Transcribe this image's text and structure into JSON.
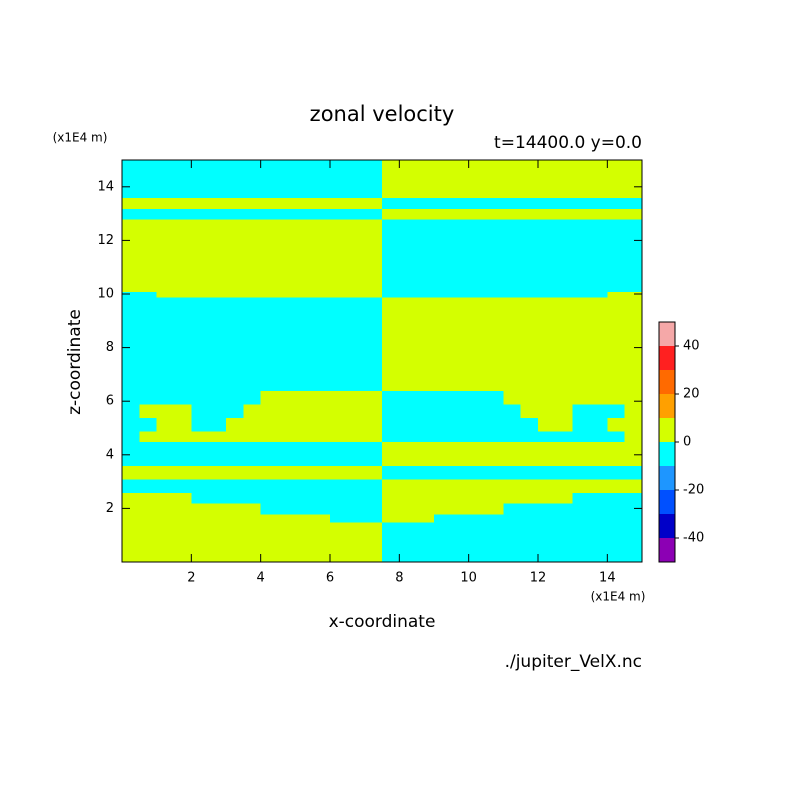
{
  "chart_data": {
    "type": "contour",
    "title": "zonal velocity",
    "subtitle": "t=14400.0 y=0.0",
    "xlabel": "x-coordinate",
    "ylabel": "z-coordinate",
    "xunits": "(x1E4 m)",
    "yunits": "(x1E4 m)",
    "source": "./jupiter_VelX.nc",
    "xlim": [
      0,
      15
    ],
    "ylim": [
      0,
      15
    ],
    "xticks": [
      2,
      4,
      6,
      8,
      10,
      12,
      14
    ],
    "yticks": [
      2,
      4,
      6,
      8,
      10,
      12,
      14
    ],
    "x_edges": [
      0,
      0.5,
      1,
      1.5,
      2,
      2.5,
      3,
      3.5,
      4,
      4.5,
      5,
      5.5,
      6,
      6.5,
      7,
      7.5,
      8,
      8.5,
      9,
      9.5,
      10,
      10.5,
      11,
      11.5,
      12,
      12.5,
      13,
      13.5,
      14,
      14.5,
      15
    ],
    "y_edges": [
      0,
      1.5,
      1.8,
      2.2,
      2.6,
      3.1,
      3.6,
      4.5,
      4.9,
      5.4,
      5.9,
      6.4,
      9.9,
      10.1,
      12.8,
      13.2,
      13.6,
      15
    ],
    "z": [
      [
        5,
        5,
        5,
        5,
        5,
        5,
        5,
        5,
        5,
        5,
        5,
        5,
        5,
        5,
        5,
        -5,
        -5,
        -5,
        -5,
        -5,
        -5,
        -5,
        -5,
        -5,
        -5,
        -5,
        -5,
        -5,
        -5,
        -5
      ],
      [
        5,
        5,
        5,
        5,
        5,
        5,
        5,
        5,
        5,
        5,
        5,
        5,
        -5,
        -5,
        -5,
        5,
        5,
        5,
        -5,
        -5,
        -5,
        -5,
        -5,
        -5,
        -5,
        -5,
        -5,
        -5,
        -5,
        -5
      ],
      [
        5,
        5,
        5,
        5,
        5,
        5,
        5,
        5,
        -5,
        -5,
        -5,
        -5,
        -5,
        -5,
        -5,
        5,
        5,
        5,
        5,
        5,
        5,
        5,
        -5,
        -5,
        -5,
        -5,
        -5,
        -5,
        -5,
        -5
      ],
      [
        5,
        5,
        5,
        5,
        -5,
        -5,
        -5,
        -5,
        -5,
        -5,
        -5,
        -5,
        -5,
        -5,
        -5,
        5,
        5,
        5,
        5,
        5,
        5,
        5,
        5,
        5,
        5,
        5,
        -5,
        -5,
        -5,
        -5
      ],
      [
        -5,
        -5,
        -5,
        -5,
        -5,
        -5,
        -5,
        -5,
        -5,
        -5,
        -5,
        -5,
        -5,
        -5,
        -5,
        5,
        5,
        5,
        5,
        5,
        5,
        5,
        5,
        5,
        5,
        5,
        5,
        5,
        5,
        5
      ],
      [
        5,
        5,
        5,
        5,
        5,
        5,
        5,
        5,
        5,
        5,
        5,
        5,
        5,
        5,
        5,
        -5,
        -5,
        -5,
        -5,
        -5,
        -5,
        -5,
        -5,
        -5,
        -5,
        -5,
        -5,
        -5,
        -5,
        -5
      ],
      [
        -5,
        -5,
        -5,
        -5,
        -5,
        -5,
        -5,
        -5,
        -5,
        -5,
        -5,
        -5,
        -5,
        -5,
        -5,
        5,
        5,
        5,
        5,
        5,
        5,
        5,
        5,
        5,
        5,
        5,
        5,
        5,
        5,
        5
      ],
      [
        -5,
        5,
        5,
        5,
        5,
        5,
        5,
        5,
        5,
        5,
        5,
        5,
        5,
        5,
        5,
        -5,
        -5,
        -5,
        -5,
        -5,
        -5,
        -5,
        -5,
        -5,
        -5,
        -5,
        -5,
        -5,
        -5,
        5
      ],
      [
        -5,
        -5,
        5,
        5,
        -5,
        -5,
        5,
        5,
        5,
        5,
        5,
        5,
        5,
        5,
        5,
        -5,
        -5,
        -5,
        -5,
        -5,
        -5,
        -5,
        -5,
        -5,
        5,
        5,
        -5,
        -5,
        5,
        5
      ],
      [
        -5,
        5,
        5,
        5,
        -5,
        -5,
        -5,
        5,
        5,
        5,
        5,
        5,
        5,
        5,
        5,
        -5,
        -5,
        -5,
        -5,
        -5,
        -5,
        -5,
        -5,
        5,
        5,
        5,
        -5,
        -5,
        -5,
        5
      ],
      [
        -5,
        -5,
        -5,
        -5,
        -5,
        -5,
        -5,
        -5,
        5,
        5,
        5,
        5,
        5,
        5,
        5,
        -5,
        -5,
        -5,
        -5,
        -5,
        -5,
        -5,
        5,
        5,
        5,
        5,
        5,
        5,
        5,
        5
      ],
      [
        -5,
        -5,
        -5,
        -5,
        -5,
        -5,
        -5,
        -5,
        -5,
        -5,
        -5,
        -5,
        -5,
        -5,
        -5,
        5,
        5,
        5,
        5,
        5,
        5,
        5,
        5,
        5,
        5,
        5,
        5,
        5,
        5,
        5
      ],
      [
        -5,
        -5,
        5,
        5,
        5,
        5,
        5,
        5,
        5,
        5,
        5,
        5,
        5,
        5,
        5,
        -5,
        -5,
        -5,
        -5,
        -5,
        -5,
        -5,
        -5,
        -5,
        -5,
        -5,
        -5,
        -5,
        5,
        5
      ],
      [
        5,
        5,
        5,
        5,
        5,
        5,
        5,
        5,
        5,
        5,
        5,
        5,
        5,
        5,
        5,
        -5,
        -5,
        -5,
        -5,
        -5,
        -5,
        -5,
        -5,
        -5,
        -5,
        -5,
        -5,
        -5,
        -5,
        -5
      ],
      [
        -5,
        -5,
        -5,
        -5,
        -5,
        -5,
        -5,
        -5,
        -5,
        -5,
        -5,
        -5,
        -5,
        -5,
        -5,
        5,
        5,
        5,
        5,
        5,
        5,
        5,
        5,
        5,
        5,
        5,
        5,
        5,
        5,
        5
      ],
      [
        5,
        5,
        5,
        5,
        5,
        5,
        5,
        5,
        5,
        5,
        5,
        5,
        5,
        5,
        5,
        -5,
        -5,
        -5,
        -5,
        -5,
        -5,
        -5,
        -5,
        -5,
        -5,
        -5,
        -5,
        -5,
        -5,
        -5
      ],
      [
        -5,
        -5,
        -5,
        -5,
        -5,
        -5,
        -5,
        -5,
        -5,
        -5,
        -5,
        -5,
        -5,
        -5,
        -5,
        5,
        5,
        5,
        5,
        5,
        5,
        5,
        5,
        5,
        5,
        5,
        5,
        5,
        5,
        5
      ]
    ],
    "colorbar": {
      "levels": [
        -50,
        -40,
        -30,
        -20,
        -10,
        0,
        10,
        20,
        30,
        40,
        50
      ],
      "colors": [
        "#8c00b4",
        "#0000c8",
        "#0050ff",
        "#1e96ff",
        "#00ffff",
        "#d4ff00",
        "#ffa000",
        "#ff6a00",
        "#ff2020",
        "#f5a8a8"
      ],
      "ticks": [
        -40,
        -20,
        0,
        20,
        40
      ]
    }
  }
}
